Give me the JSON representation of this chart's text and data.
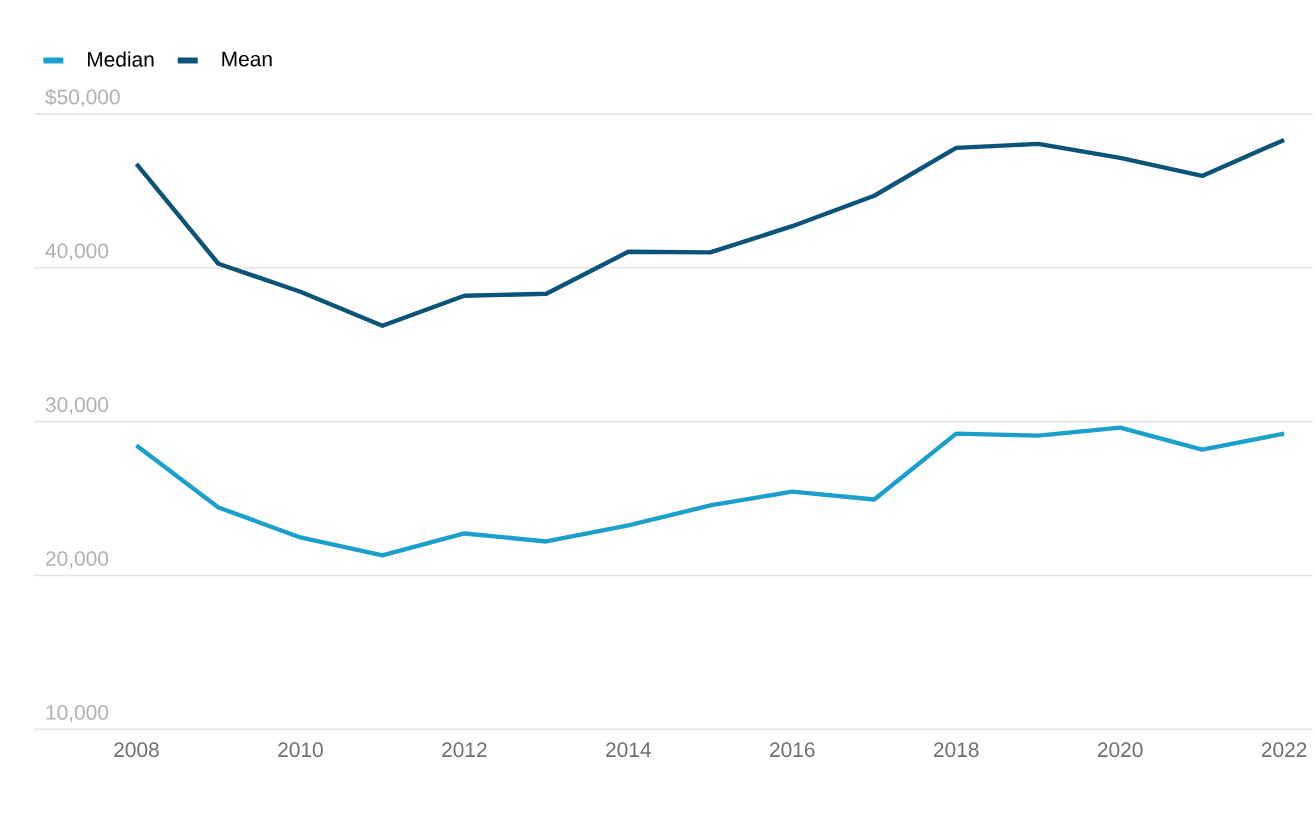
{
  "chart_data": {
    "type": "line",
    "x": [
      2008,
      2009,
      2010,
      2011,
      2012,
      2013,
      2014,
      2015,
      2016,
      2017,
      2018,
      2019,
      2020,
      2021,
      2022
    ],
    "series": [
      {
        "name": "Median",
        "color": "#1b9fcc",
        "values": [
          28440,
          24420,
          22470,
          21300,
          22730,
          22210,
          23250,
          24550,
          25450,
          24940,
          29220,
          29090,
          29610,
          28180,
          29220
        ]
      },
      {
        "name": "Mean",
        "color": "#0b5479",
        "values": [
          46750,
          40260,
          38440,
          36230,
          38180,
          38310,
          41040,
          41000,
          42700,
          44680,
          47790,
          48050,
          47140,
          45970,
          48310
        ]
      }
    ],
    "xlim": [
      2006.75,
      2022.35
    ],
    "xticks": [
      2008,
      2010,
      2012,
      2014,
      2016,
      2018,
      2020,
      2022
    ],
    "ylim": [
      10000,
      50000
    ],
    "yticks": [
      {
        "value": 10000,
        "label": "10,000"
      },
      {
        "value": 20000,
        "label": "20,000"
      },
      {
        "value": 30000,
        "label": "30,000"
      },
      {
        "value": 40000,
        "label": "40,000"
      },
      {
        "value": 50000,
        "label": "$50,000"
      }
    ],
    "grid": "y",
    "legend": "top left",
    "marker": "none",
    "line_style": "solid"
  }
}
